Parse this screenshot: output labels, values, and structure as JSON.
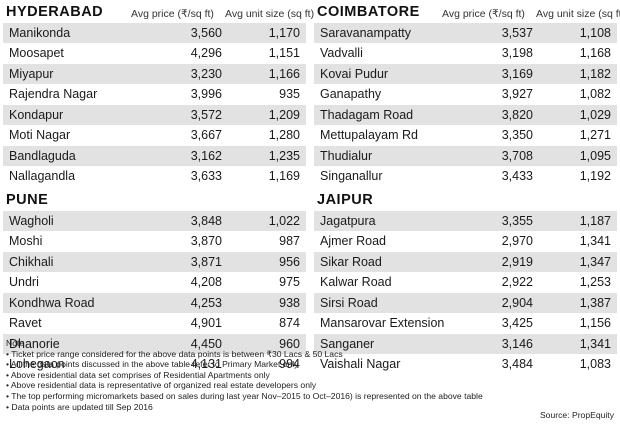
{
  "left": {
    "sections": [
      {
        "city": "HYDERABAD",
        "price_header": "Avg price (₹/sq ft)",
        "size_header": "Avg unit size (sq ft)",
        "rows": [
          {
            "name": "Manikonda",
            "price": "3,560",
            "size": "1,170"
          },
          {
            "name": "Moosapet",
            "price": "4,296",
            "size": "1,151"
          },
          {
            "name": "Miyapur",
            "price": "3,230",
            "size": "1,166"
          },
          {
            "name": "Rajendra Nagar",
            "price": "3,996",
            "size": "935"
          },
          {
            "name": "Kondapur",
            "price": "3,572",
            "size": "1,209"
          },
          {
            "name": "Moti Nagar",
            "price": "3,667",
            "size": "1,280"
          },
          {
            "name": "Bandlaguda",
            "price": "3,162",
            "size": "1,235"
          },
          {
            "name": "Nallagandla",
            "price": "3,633",
            "size": "1,169"
          }
        ]
      },
      {
        "city": "PUNE",
        "rows": [
          {
            "name": "Wagholi",
            "price": "3,848",
            "size": "1,022"
          },
          {
            "name": "Moshi",
            "price": "3,870",
            "size": "987"
          },
          {
            "name": "Chikhali",
            "price": "3,871",
            "size": "956"
          },
          {
            "name": "Undri",
            "price": "4,208",
            "size": "975"
          },
          {
            "name": "Kondhwa Road",
            "price": "4,253",
            "size": "938"
          },
          {
            "name": "Ravet",
            "price": "4,901",
            "size": "874"
          },
          {
            "name": "Dhanorie",
            "price": "4,450",
            "size": "960"
          },
          {
            "name": "Lohegaon",
            "price": "4,131",
            "size": "994"
          }
        ]
      }
    ]
  },
  "right": {
    "sections": [
      {
        "city": "COIMBATORE",
        "price_header": "Avg price (₹/sq ft)",
        "size_header": "Avg unit size (sq ft)",
        "rows": [
          {
            "name": "Saravanampatty",
            "price": "3,537",
            "size": "1,108"
          },
          {
            "name": "Vadvalli",
            "price": "3,198",
            "size": "1,168"
          },
          {
            "name": "Kovai Pudur",
            "price": "3,169",
            "size": "1,182"
          },
          {
            "name": "Ganapathy",
            "price": "3,927",
            "size": "1,082"
          },
          {
            "name": "Thadagam Road",
            "price": "3,820",
            "size": "1,029"
          },
          {
            "name": "Mettupalayam Rd",
            "price": "3,350",
            "size": "1,271"
          },
          {
            "name": "Thudialur",
            "price": "3,708",
            "size": "1,095"
          },
          {
            "name": "Singanallur",
            "price": "3,433",
            "size": "1,192"
          }
        ]
      },
      {
        "city": "JAIPUR",
        "rows": [
          {
            "name": "Jagatpura",
            "price": "3,355",
            "size": "1,187"
          },
          {
            "name": "Ajmer Road",
            "price": "2,970",
            "size": "1,341"
          },
          {
            "name": "Sikar Road",
            "price": "2,919",
            "size": "1,347"
          },
          {
            "name": "Kalwar Road",
            "price": "2,922",
            "size": "1,253"
          },
          {
            "name": "Sirsi Road",
            "price": "2,904",
            "size": "1,387"
          },
          {
            "name": "Mansarovar Extension",
            "price": "3,425",
            "size": "1,156"
          },
          {
            "name": "Sanganer",
            "price": "3,146",
            "size": "1,341"
          },
          {
            "name": "Vaishali Nagar",
            "price": "3,484",
            "size": "1,083"
          }
        ]
      }
    ]
  },
  "notes": {
    "title": "Note",
    "lines": [
      "• Ticket price range considered for the above data points is between ₹30 Lacs & 50 Lacs",
      "• All the data points discussed in the above table refer to Primary Market only",
      "• Above residential data set comprises of Residential Apartments only",
      "• Above residential data is representative of organized real estate developers only",
      "• The top performing micromarkets based on sales during last year Nov–2015 to Oct–2016) is represented on the above table",
      "• Data points are updated till Sep 2016"
    ]
  },
  "source": "Source: PropEquity"
}
